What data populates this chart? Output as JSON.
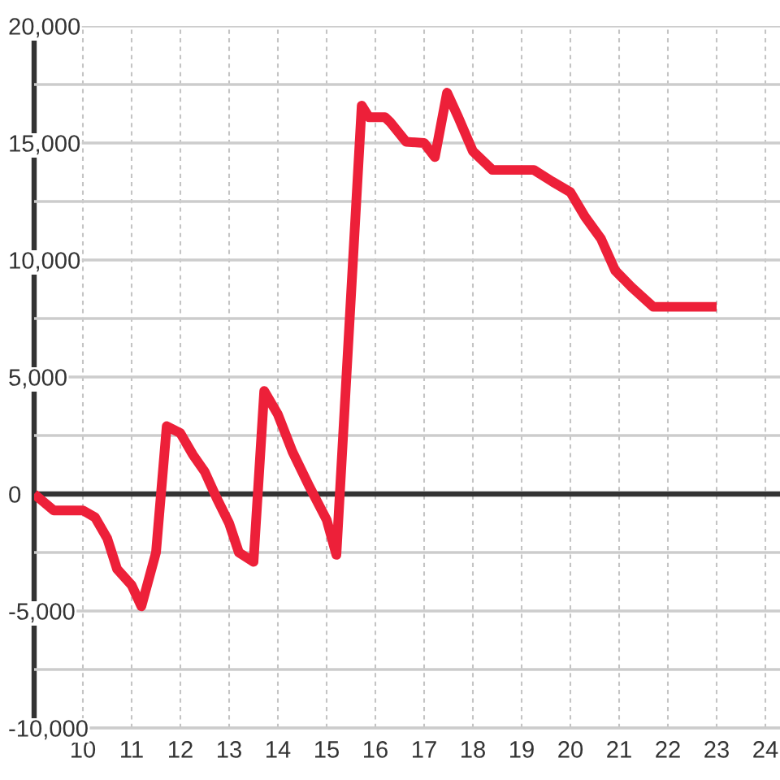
{
  "chart_data": {
    "type": "line",
    "color": "#ed2039",
    "line_style": "solid",
    "x": [
      9.0,
      9.4,
      10.0,
      10.25,
      10.5,
      10.7,
      11.0,
      11.2,
      11.5,
      11.72,
      12.0,
      12.25,
      12.5,
      12.75,
      13.0,
      13.2,
      13.5,
      13.72,
      14.0,
      14.3,
      14.65,
      15.0,
      15.2,
      15.72,
      15.87,
      16.2,
      16.3,
      16.63,
      17.0,
      17.22,
      17.47,
      17.7,
      18.0,
      18.4,
      19.25,
      19.63,
      20.0,
      20.3,
      20.63,
      20.92,
      21.25,
      21.7,
      23.0
    ],
    "values": [
      0,
      -700,
      -700,
      -1000,
      -1900,
      -3200,
      -3900,
      -4800,
      -2500,
      2900,
      2600,
      1700,
      950,
      -200,
      -1250,
      -2500,
      -2900,
      4400,
      3400,
      1800,
      300,
      -1100,
      -2600,
      16600,
      16100,
      16100,
      15900,
      15050,
      15000,
      14400,
      17150,
      16100,
      14650,
      13850,
      13850,
      13350,
      12900,
      11850,
      10900,
      9550,
      8850,
      8000,
      8000
    ],
    "xlim": [
      9,
      24.3
    ],
    "xticks": [
      10,
      11,
      12,
      13,
      14,
      15,
      16,
      17,
      18,
      19,
      20,
      21,
      22,
      23,
      24
    ],
    "ylim": [
      -10000,
      20000
    ],
    "yticks": [
      {
        "value": -10000,
        "label": "-10,000"
      },
      {
        "value": -7500,
        "label": null
      },
      {
        "value": -5000,
        "label": "-5,000"
      },
      {
        "value": -2500,
        "label": null
      },
      {
        "value": 0,
        "label": "0"
      },
      {
        "value": 2500,
        "label": null
      },
      {
        "value": 5000,
        "label": "5,000"
      },
      {
        "value": 7500,
        "label": null
      },
      {
        "value": 10000,
        "label": "10,000"
      },
      {
        "value": 12500,
        "label": null
      },
      {
        "value": 15000,
        "label": "15,000"
      },
      {
        "value": 17500,
        "label": null
      },
      {
        "value": 20000,
        "label": "20,000"
      }
    ],
    "grid": true,
    "ref_lines": [
      {
        "axis": "y",
        "value": 0,
        "color": "#333333"
      }
    ]
  }
}
